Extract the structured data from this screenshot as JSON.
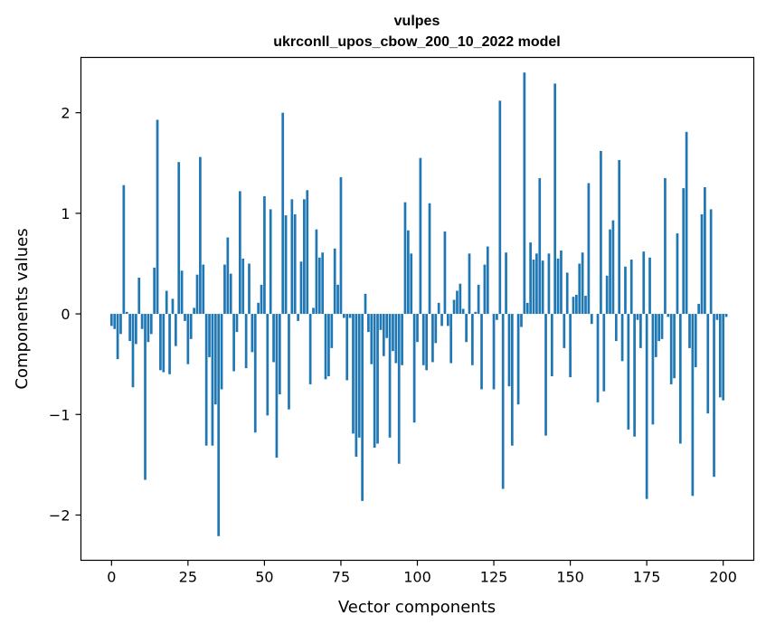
{
  "chart_data": {
    "type": "bar",
    "title": "vulpes",
    "subtitle": "ukrconll_upos_cbow_200_10_2022 model",
    "xlabel": "Vector components",
    "ylabel": "Components values",
    "xlim": [
      -10,
      210
    ],
    "ylim": [
      -2.45,
      2.55
    ],
    "xticks": [
      0,
      25,
      50,
      75,
      100,
      125,
      150,
      175,
      200
    ],
    "yticks": [
      -2,
      -1,
      0,
      1,
      2
    ],
    "x_tick_labels": [
      "0",
      "25",
      "50",
      "75",
      "100",
      "125",
      "150",
      "175",
      "200"
    ],
    "y_tick_labels": [
      "−2",
      "−1",
      "0",
      "1",
      "2"
    ],
    "grid": false,
    "bar_color": "#1f77b4",
    "values": [
      -0.12,
      -0.15,
      -0.45,
      -0.2,
      1.28,
      0.02,
      -0.27,
      -0.73,
      -0.3,
      0.36,
      -0.15,
      -1.65,
      -0.28,
      -0.2,
      0.46,
      1.93,
      -0.56,
      -0.58,
      0.23,
      -0.6,
      0.15,
      -0.32,
      1.51,
      0.43,
      -0.07,
      -0.5,
      -0.25,
      0.06,
      0.39,
      1.56,
      0.49,
      -1.31,
      -0.43,
      -1.31,
      -0.9,
      -2.21,
      -0.75,
      0.49,
      0.76,
      0.4,
      -0.57,
      -0.18,
      1.22,
      0.55,
      -0.54,
      0.5,
      -0.38,
      -1.18,
      0.11,
      0.29,
      1.17,
      -1.01,
      1.04,
      -0.48,
      -1.43,
      -0.8,
      2.0,
      0.98,
      -0.95,
      1.14,
      0.99,
      -0.07,
      0.52,
      1.14,
      1.23,
      -0.7,
      0.06,
      0.84,
      0.56,
      0.61,
      -0.65,
      -0.62,
      -0.34,
      0.65,
      0.29,
      1.36,
      -0.04,
      -0.66,
      -0.04,
      -1.19,
      -1.42,
      -1.23,
      -1.86,
      0.2,
      -0.18,
      -0.5,
      -1.33,
      -1.29,
      -0.16,
      -0.42,
      -0.24,
      -1.23,
      -0.37,
      -0.49,
      -1.49,
      -0.51,
      1.11,
      0.83,
      0.6,
      -1.08,
      -0.28,
      1.55,
      -0.51,
      -0.56,
      1.1,
      -0.48,
      -0.29,
      0.11,
      -0.12,
      0.82,
      -0.12,
      -0.49,
      0.14,
      0.23,
      0.3,
      0.05,
      -0.28,
      0.6,
      -0.51,
      0.02,
      0.29,
      -0.75,
      0.49,
      0.67,
      0.0,
      -0.75,
      -0.06,
      2.12,
      -1.74,
      0.61,
      -0.72,
      -1.31,
      0.0,
      -0.9,
      -0.13,
      2.4,
      0.11,
      0.71,
      0.54,
      0.6,
      1.35,
      0.53,
      -1.21,
      0.6,
      -0.62,
      2.29,
      0.55,
      0.63,
      -0.34,
      0.41,
      -0.63,
      0.17,
      0.19,
      0.5,
      0.61,
      0.18,
      1.3,
      -0.1,
      0.0,
      -0.88,
      1.62,
      -0.77,
      0.38,
      0.84,
      0.93,
      -0.27,
      1.53,
      -0.47,
      0.47,
      -1.15,
      0.54,
      -1.22,
      -0.06,
      -0.34,
      0.62,
      -1.84,
      0.56,
      -1.1,
      -0.43,
      -0.27,
      -0.25,
      1.35,
      -0.03,
      -0.7,
      -0.64,
      0.8,
      -1.29,
      1.25,
      1.81,
      -0.34,
      -1.81,
      -0.53,
      0.1,
      0.99,
      1.26,
      -0.99,
      1.04,
      -1.62,
      -0.06,
      -0.83,
      -0.86,
      -0.03
    ]
  }
}
